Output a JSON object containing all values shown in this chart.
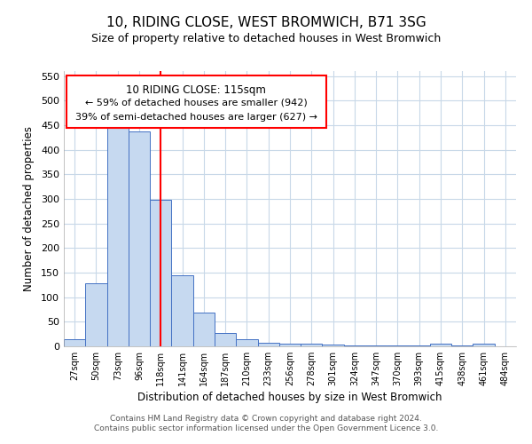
{
  "title": "10, RIDING CLOSE, WEST BROMWICH, B71 3SG",
  "subtitle": "Size of property relative to detached houses in West Bromwich",
  "xlabel": "Distribution of detached houses by size in West Bromwich",
  "ylabel": "Number of detached properties",
  "categories": [
    "27sqm",
    "50sqm",
    "73sqm",
    "96sqm",
    "118sqm",
    "141sqm",
    "164sqm",
    "187sqm",
    "210sqm",
    "233sqm",
    "256sqm",
    "278sqm",
    "301sqm",
    "324sqm",
    "347sqm",
    "370sqm",
    "393sqm",
    "415sqm",
    "438sqm",
    "461sqm",
    "484sqm"
  ],
  "values": [
    15,
    128,
    448,
    437,
    298,
    145,
    68,
    28,
    15,
    8,
    6,
    5,
    3,
    2,
    1,
    1,
    1,
    5,
    1,
    6,
    0
  ],
  "bar_color": "#c6d9f0",
  "bar_edge_color": "#4472c4",
  "vline_x": 4,
  "vline_color": "red",
  "annotation_title": "10 RIDING CLOSE: 115sqm",
  "annotation_line1": "← 59% of detached houses are smaller (942)",
  "annotation_line2": "39% of semi-detached houses are larger (627) →",
  "ylim": [
    0,
    560
  ],
  "yticks": [
    0,
    50,
    100,
    150,
    200,
    250,
    300,
    350,
    400,
    450,
    500,
    550
  ],
  "footer1": "Contains HM Land Registry data © Crown copyright and database right 2024.",
  "footer2": "Contains public sector information licensed under the Open Government Licence 3.0.",
  "background_color": "#ffffff",
  "grid_color": "#c8d8e8",
  "title_fontsize": 11,
  "subtitle_fontsize": 9
}
